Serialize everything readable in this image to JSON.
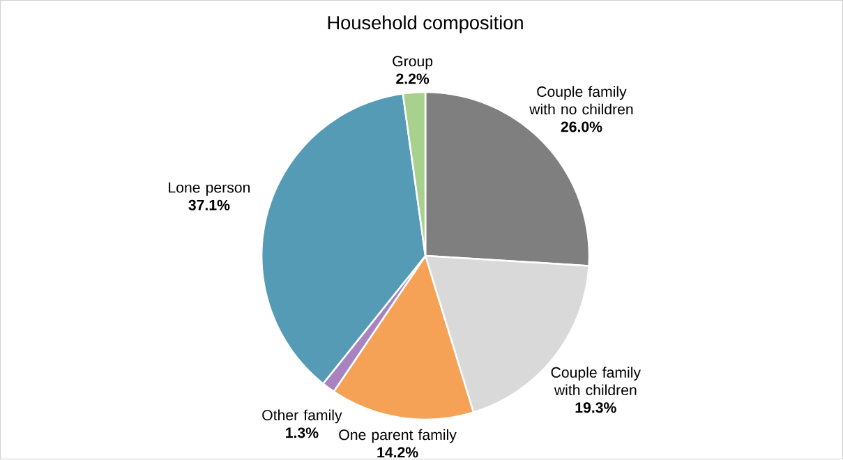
{
  "chart_data": {
    "type": "pie",
    "title": "Household composition",
    "categories": [
      "Couple family with no children",
      "Couple family with children",
      "One parent family",
      "Other family",
      "Lone person",
      "Group"
    ],
    "values": [
      26.0,
      19.3,
      14.2,
      1.3,
      37.1,
      2.2
    ],
    "colors": [
      "#7f7f7f",
      "#d9d9d9",
      "#f5a256",
      "#a883c0",
      "#559bb5",
      "#a9d18e"
    ],
    "value_labels": [
      "26.0%",
      "19.3%",
      "14.2%",
      "1.3%",
      "37.1%",
      "2.2%"
    ]
  }
}
